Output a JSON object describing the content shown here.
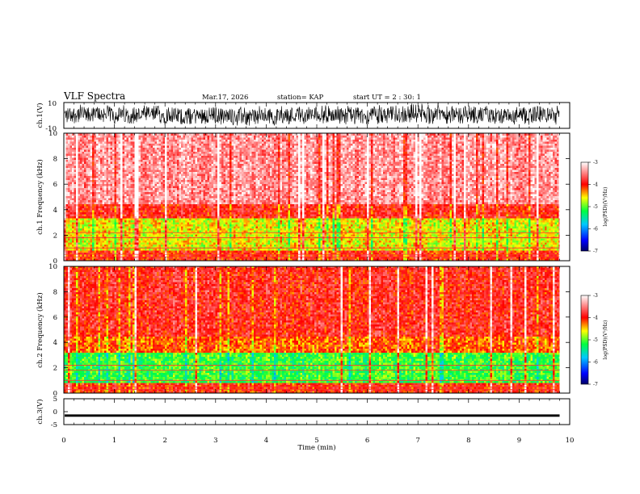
{
  "header": {
    "title": "VLF Spectra",
    "date": "Mar.17, 2026",
    "station": "station= KAP",
    "start_ut": "start  UT =  2 : 30: 1"
  },
  "chart_data": [
    {
      "type": "line",
      "name": "ch1-waveform",
      "ylabel": "ch.1(V)",
      "xlim": [
        0,
        10
      ],
      "ylim": [
        -10,
        10
      ],
      "yticks": [
        "10",
        "-10"
      ],
      "data_end_min": 9.8,
      "description_series": "dense noisy waveform oscillating between about -8 and +8 V"
    },
    {
      "type": "heatmap",
      "name": "ch1-spectrogram",
      "ylabel": "ch.1  Frequency  (kHz)",
      "xlim": [
        0,
        10
      ],
      "ylim": [
        0,
        10
      ],
      "yticks": [
        "0",
        "2",
        "4",
        "6",
        "8",
        "10"
      ],
      "data_end_min": 9.8,
      "bands_khz": [
        {
          "from": 0,
          "to": 0.8,
          "level": -4.0
        },
        {
          "from": 0.8,
          "to": 3.3,
          "level": -4.6
        },
        {
          "from": 3.3,
          "to": 4.5,
          "level": -3.9
        },
        {
          "from": 4.5,
          "to": 10,
          "level": -3.4
        }
      ],
      "colorbar": {
        "label": "log(PSD)(V²/Hz)",
        "min": -7,
        "max": -3,
        "ticks": [
          "-3",
          "-4",
          "-5",
          "-6",
          "-7"
        ]
      }
    },
    {
      "type": "heatmap",
      "name": "ch2-spectrogram",
      "ylabel": "ch.2  Frequency  (kHz)",
      "xlim": [
        0,
        10
      ],
      "ylim": [
        0,
        10
      ],
      "yticks": [
        "0",
        "2",
        "4",
        "6",
        "8",
        "10"
      ],
      "data_end_min": 9.8,
      "bands_khz": [
        {
          "from": 0,
          "to": 0.8,
          "level": -4.0
        },
        {
          "from": 0.8,
          "to": 3.2,
          "level": -5.1
        },
        {
          "from": 3.2,
          "to": 4.5,
          "level": -4.2
        },
        {
          "from": 4.5,
          "to": 10,
          "level": -3.9
        }
      ],
      "colorbar": {
        "label": "log(PSD)(V²/Hz)",
        "min": -7,
        "max": -3,
        "ticks": [
          "-3",
          "-4",
          "-5",
          "-6",
          "-7"
        ]
      }
    },
    {
      "type": "line",
      "name": "ch3-waveform",
      "ylabel": "ch.3(V)",
      "xlim": [
        0,
        10
      ],
      "ylim": [
        -5,
        5
      ],
      "yticks": [
        "5",
        "0",
        "-5"
      ],
      "data_end_min": 9.8,
      "level_v": -1.5,
      "band_halfwidth_v": 0.45
    }
  ],
  "xaxis": {
    "label": "Time  (min)",
    "ticks": [
      "0",
      "1",
      "2",
      "3",
      "4",
      "5",
      "6",
      "7",
      "8",
      "9",
      "10"
    ]
  }
}
